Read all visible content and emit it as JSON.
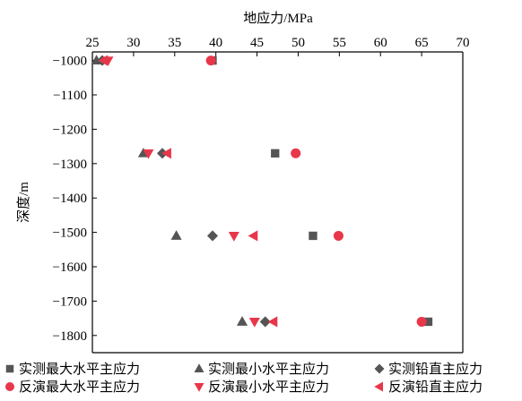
{
  "chart_data": {
    "type": "scatter",
    "title": "",
    "xlabel": "地应力/MPa",
    "ylabel": "深度/m",
    "xlim": [
      25,
      70
    ],
    "ylim": [
      -1850,
      -975
    ],
    "x_axis_position": "top",
    "x_ticks": [
      "25",
      "30",
      "35",
      "40",
      "45",
      "50",
      "55",
      "60",
      "65",
      "70"
    ],
    "y_ticks": [
      "−1000",
      "−1100",
      "−1200",
      "−1300",
      "−1400",
      "−1500",
      "−1600",
      "−1700",
      "−1800"
    ],
    "grid": false,
    "legend_position": "bottom",
    "series": [
      {
        "name": "实测最大水平主应力",
        "marker": "square",
        "color": "#555555",
        "points": [
          [
            39.6,
            -1000
          ],
          [
            47.2,
            -1270
          ],
          [
            51.8,
            -1510
          ],
          [
            65.8,
            -1760
          ]
        ]
      },
      {
        "name": "实测最小水平主应力",
        "marker": "triangle-up",
        "color": "#555555",
        "points": [
          [
            25.5,
            -1000
          ],
          [
            31.2,
            -1270
          ],
          [
            35.2,
            -1510
          ],
          [
            43.2,
            -1760
          ]
        ]
      },
      {
        "name": "实测铅直主应力",
        "marker": "diamond",
        "color": "#555555",
        "points": [
          [
            26.2,
            -1000
          ],
          [
            33.5,
            -1270
          ],
          [
            39.6,
            -1510
          ],
          [
            46.0,
            -1760
          ]
        ]
      },
      {
        "name": "反演最大水平主应力",
        "marker": "circle",
        "color": "#e8374a",
        "points": [
          [
            39.4,
            -1000
          ],
          [
            49.7,
            -1270
          ],
          [
            54.9,
            -1510
          ],
          [
            65.0,
            -1760
          ]
        ]
      },
      {
        "name": "反演最小水平主应力",
        "marker": "triangle-down",
        "color": "#e8374a",
        "points": [
          [
            26.9,
            -1000
          ],
          [
            31.8,
            -1270
          ],
          [
            42.2,
            -1510
          ],
          [
            44.7,
            -1760
          ]
        ]
      },
      {
        "name": "反演铅直主应力",
        "marker": "triangle-left",
        "color": "#e8374a",
        "points": [
          [
            26.4,
            -1000
          ],
          [
            34.1,
            -1270
          ],
          [
            44.6,
            -1510
          ],
          [
            47.0,
            -1760
          ]
        ]
      }
    ]
  }
}
